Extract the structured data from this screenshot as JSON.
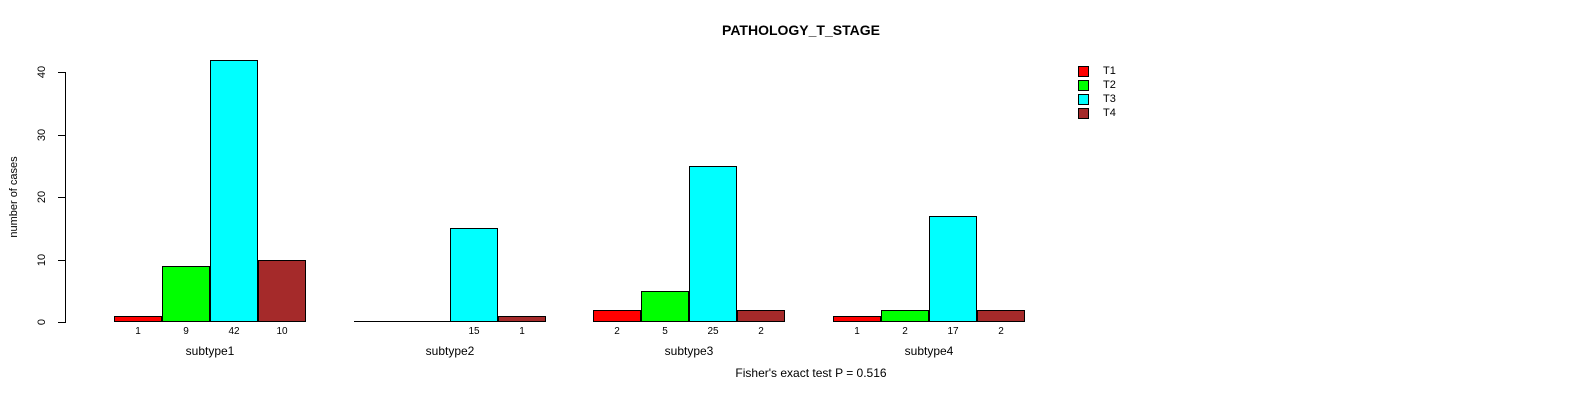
{
  "chart_data": {
    "type": "bar",
    "title": "PATHOLOGY_T_STAGE",
    "ylabel": "number of cases",
    "xlabel": "",
    "ylim": [
      0,
      40
    ],
    "yticks": [
      0,
      10,
      20,
      30,
      40
    ],
    "grid": false,
    "legend_position": "top-right",
    "categories": [
      "subtype1",
      "subtype2",
      "subtype3",
      "subtype4"
    ],
    "series": [
      {
        "name": "T1",
        "color": "#FF0000",
        "values": [
          1,
          0,
          2,
          1
        ]
      },
      {
        "name": "T2",
        "color": "#00FF00",
        "values": [
          9,
          0,
          5,
          2
        ]
      },
      {
        "name": "T3",
        "color": "#00FFFF",
        "values": [
          42,
          15,
          25,
          17
        ]
      },
      {
        "name": "T4",
        "color": "#A52A2A",
        "values": [
          10,
          1,
          2,
          2
        ]
      }
    ],
    "bar_value_labels_shown_for_nonzero_only": true,
    "annotation": "Fisher's exact test P = 0.516"
  }
}
